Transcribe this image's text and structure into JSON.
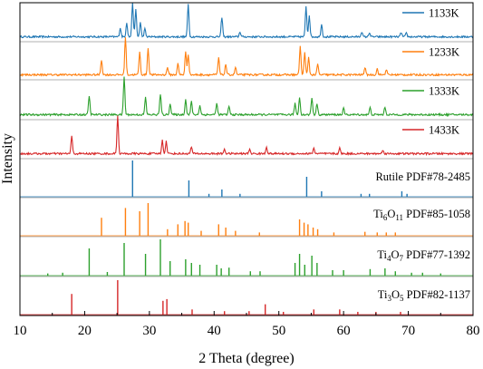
{
  "chart_data": {
    "type": "line",
    "title": "",
    "xlabel": "2 Theta (degree)",
    "ylabel": "Intensity",
    "xlim": [
      10,
      80
    ],
    "x_ticks": [
      10,
      20,
      30,
      40,
      50,
      60,
      70,
      80
    ],
    "y_ticks_shown": false,
    "grid": false,
    "legend_placement": "right of each panel",
    "series": [
      {
        "name": "1133K",
        "kind": "pattern",
        "color": "#1f77b4",
        "baseline": 0.06,
        "peaks": [
          [
            25.5,
            0.25
          ],
          [
            26.5,
            0.4
          ],
          [
            27.4,
            0.95
          ],
          [
            27.9,
            0.75
          ],
          [
            28.6,
            0.4
          ],
          [
            29.3,
            0.22
          ],
          [
            36.0,
            0.9
          ],
          [
            41.2,
            0.55
          ],
          [
            44.0,
            0.14
          ],
          [
            54.2,
            0.85
          ],
          [
            54.7,
            0.6
          ],
          [
            56.6,
            0.35
          ],
          [
            62.8,
            0.14
          ],
          [
            64.0,
            0.12
          ],
          [
            68.9,
            0.12
          ],
          [
            69.7,
            0.1
          ]
        ]
      },
      {
        "name": "1233K",
        "kind": "pattern",
        "color": "#ff7f0e",
        "baseline": 0.06,
        "peaks": [
          [
            22.6,
            0.4
          ],
          [
            26.3,
            1.0
          ],
          [
            28.5,
            0.6
          ],
          [
            29.8,
            0.7
          ],
          [
            32.8,
            0.2
          ],
          [
            34.4,
            0.3
          ],
          [
            35.6,
            0.6
          ],
          [
            36.0,
            0.55
          ],
          [
            40.7,
            0.45
          ],
          [
            41.8,
            0.28
          ],
          [
            43.3,
            0.2
          ],
          [
            53.3,
            0.75
          ],
          [
            54.0,
            0.6
          ],
          [
            54.6,
            0.45
          ],
          [
            56.0,
            0.28
          ],
          [
            63.3,
            0.2
          ],
          [
            65.2,
            0.16
          ],
          [
            66.6,
            0.14
          ]
        ]
      },
      {
        "name": "1333K",
        "kind": "pattern",
        "color": "#2ca02c",
        "baseline": 0.06,
        "peaks": [
          [
            20.7,
            0.5
          ],
          [
            26.1,
            1.0
          ],
          [
            29.4,
            0.45
          ],
          [
            31.7,
            0.55
          ],
          [
            33.2,
            0.3
          ],
          [
            35.6,
            0.4
          ],
          [
            36.5,
            0.35
          ],
          [
            37.8,
            0.25
          ],
          [
            40.4,
            0.3
          ],
          [
            42.3,
            0.22
          ],
          [
            52.5,
            0.3
          ],
          [
            53.2,
            0.45
          ],
          [
            55.1,
            0.45
          ],
          [
            55.9,
            0.3
          ],
          [
            60.0,
            0.16
          ],
          [
            64.1,
            0.18
          ],
          [
            66.4,
            0.2
          ]
        ]
      },
      {
        "name": "1433K",
        "kind": "pattern",
        "color": "#d62728",
        "baseline": 0.06,
        "peaks": [
          [
            18.0,
            0.45
          ],
          [
            25.1,
            1.0
          ],
          [
            32.0,
            0.35
          ],
          [
            32.6,
            0.32
          ],
          [
            36.5,
            0.18
          ],
          [
            41.6,
            0.12
          ],
          [
            45.5,
            0.12
          ],
          [
            48.1,
            0.18
          ],
          [
            55.4,
            0.15
          ],
          [
            59.4,
            0.14
          ],
          [
            66.1,
            0.1
          ]
        ]
      },
      {
        "name": "Rutile PDF#78-2485",
        "kind": "reference",
        "color": "#1f77b4",
        "peaks": [
          [
            27.4,
            1.0
          ],
          [
            36.1,
            0.45
          ],
          [
            39.2,
            0.08
          ],
          [
            41.2,
            0.2
          ],
          [
            44.0,
            0.08
          ],
          [
            54.3,
            0.55
          ],
          [
            56.6,
            0.15
          ],
          [
            62.7,
            0.08
          ],
          [
            64.0,
            0.08
          ],
          [
            69.0,
            0.15
          ],
          [
            69.8,
            0.08
          ]
        ]
      },
      {
        "name_parts": [
          "Ti",
          "6",
          "O",
          "11",
          " PDF#85-1058"
        ],
        "kind": "reference",
        "color": "#ff7f0e",
        "peaks": [
          [
            22.6,
            0.55
          ],
          [
            26.3,
            0.85
          ],
          [
            28.5,
            0.75
          ],
          [
            29.8,
            1.0
          ],
          [
            32.8,
            0.2
          ],
          [
            34.4,
            0.35
          ],
          [
            35.5,
            0.45
          ],
          [
            36.0,
            0.4
          ],
          [
            38.0,
            0.15
          ],
          [
            40.7,
            0.35
          ],
          [
            41.8,
            0.25
          ],
          [
            43.3,
            0.15
          ],
          [
            47.0,
            0.1
          ],
          [
            53.2,
            0.5
          ],
          [
            53.9,
            0.4
          ],
          [
            54.5,
            0.35
          ],
          [
            55.3,
            0.25
          ],
          [
            56.0,
            0.2
          ],
          [
            58.5,
            0.1
          ],
          [
            63.3,
            0.12
          ],
          [
            65.2,
            0.1
          ],
          [
            66.6,
            0.1
          ],
          [
            68.0,
            0.1
          ]
        ]
      },
      {
        "name_parts": [
          "Ti",
          "4",
          "O",
          "7",
          " PDF#77-1392"
        ],
        "kind": "reference",
        "color": "#2ca02c",
        "peaks": [
          [
            14.3,
            0.06
          ],
          [
            16.6,
            0.08
          ],
          [
            20.7,
            0.75
          ],
          [
            23.5,
            0.1
          ],
          [
            26.1,
            0.9
          ],
          [
            29.4,
            0.6
          ],
          [
            31.7,
            1.0
          ],
          [
            33.2,
            0.4
          ],
          [
            35.6,
            0.45
          ],
          [
            36.5,
            0.35
          ],
          [
            37.8,
            0.3
          ],
          [
            40.4,
            0.3
          ],
          [
            41.1,
            0.2
          ],
          [
            42.3,
            0.22
          ],
          [
            45.6,
            0.12
          ],
          [
            47.1,
            0.12
          ],
          [
            52.5,
            0.35
          ],
          [
            53.2,
            0.6
          ],
          [
            54.0,
            0.3
          ],
          [
            55.1,
            0.55
          ],
          [
            55.9,
            0.35
          ],
          [
            58.3,
            0.15
          ],
          [
            60.0,
            0.15
          ],
          [
            64.1,
            0.18
          ],
          [
            66.4,
            0.2
          ],
          [
            68.0,
            0.12
          ],
          [
            70.5,
            0.08
          ],
          [
            72.2,
            0.08
          ],
          [
            75.0,
            0.06
          ]
        ]
      },
      {
        "name_parts": [
          "Ti",
          "3",
          "O",
          "5",
          " PDF#82-1137"
        ],
        "kind": "reference",
        "color": "#d62728",
        "peaks": [
          [
            18.0,
            0.6
          ],
          [
            25.1,
            1.0
          ],
          [
            32.1,
            0.4
          ],
          [
            32.7,
            0.45
          ],
          [
            36.6,
            0.15
          ],
          [
            41.6,
            0.1
          ],
          [
            45.4,
            0.1
          ],
          [
            47.9,
            0.3
          ],
          [
            50.7,
            0.08
          ],
          [
            55.4,
            0.15
          ],
          [
            59.4,
            0.15
          ],
          [
            62.2,
            0.08
          ],
          [
            65.0,
            0.08
          ],
          [
            68.8,
            0.08
          ]
        ]
      }
    ]
  }
}
